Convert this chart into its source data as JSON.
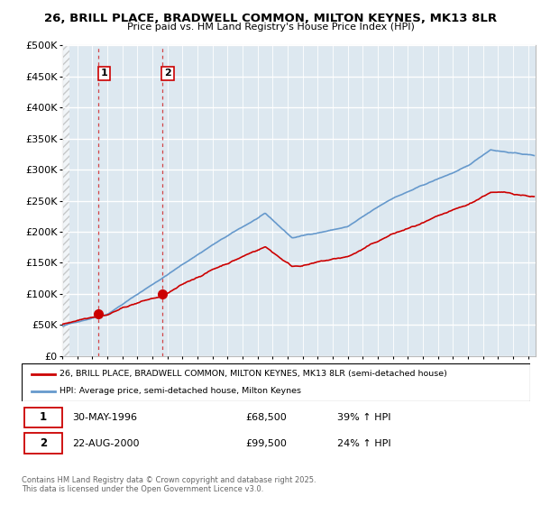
{
  "title_line1": "26, BRILL PLACE, BRADWELL COMMON, MILTON KEYNES, MK13 8LR",
  "title_line2": "Price paid vs. HM Land Registry's House Price Index (HPI)",
  "ylim": [
    0,
    500000
  ],
  "xlim_start": 1994.0,
  "xlim_end": 2025.5,
  "yticks": [
    0,
    50000,
    100000,
    150000,
    200000,
    250000,
    300000,
    350000,
    400000,
    450000,
    500000
  ],
  "ytick_labels": [
    "£0",
    "£50K",
    "£100K",
    "£150K",
    "£200K",
    "£250K",
    "£300K",
    "£350K",
    "£400K",
    "£450K",
    "£500K"
  ],
  "purchase1_x": 1996.41,
  "purchase1_y": 68500,
  "purchase2_x": 2000.64,
  "purchase2_y": 99500,
  "vline1_x": 1996.41,
  "vline2_x": 2000.64,
  "label1": "1",
  "label2": "2",
  "legend_line1": "26, BRILL PLACE, BRADWELL COMMON, MILTON KEYNES, MK13 8LR (semi-detached house)",
  "legend_line2": "HPI: Average price, semi-detached house, Milton Keynes",
  "footnote": "Contains HM Land Registry data © Crown copyright and database right 2025.\nThis data is licensed under the Open Government Licence v3.0.",
  "red_color": "#cc0000",
  "blue_color": "#6699cc",
  "background_color": "#ffffff",
  "plot_bg_color": "#dde8f0"
}
